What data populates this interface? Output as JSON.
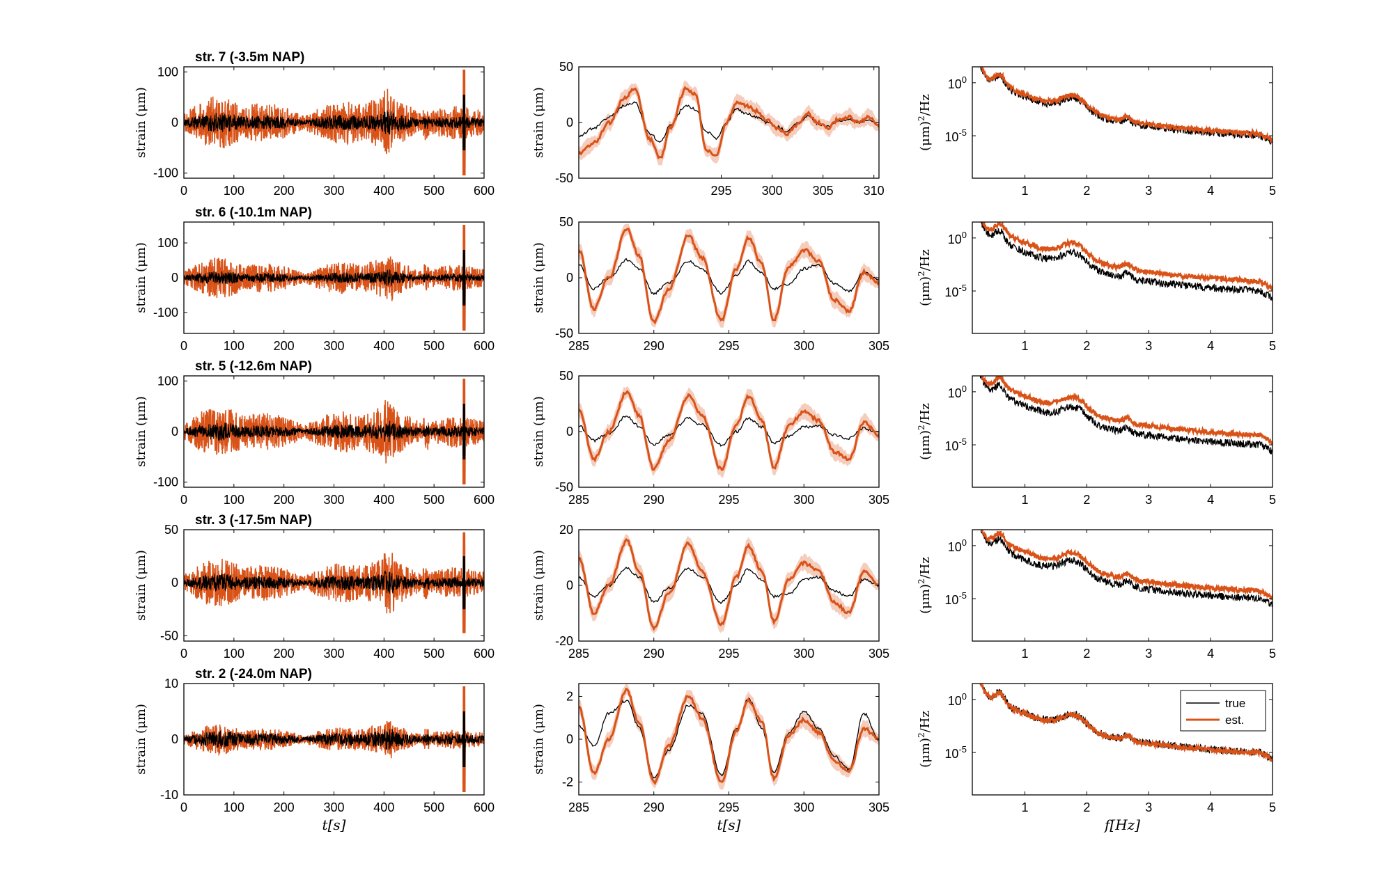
{
  "colors": {
    "true": "#000000",
    "est": "#d95319",
    "band": "#f4cdbd"
  },
  "legend": {
    "entries": [
      "true",
      "est."
    ],
    "placement": "top-right",
    "panel": "row-5-spectrum"
  },
  "chart_data": [
    {
      "row": 1,
      "title": "str. 7 (-3.5m NAP)",
      "type": "line",
      "ylabel": "strain (μm)",
      "left": {
        "xlim": [
          0,
          600
        ],
        "ylim": [
          -110,
          110
        ],
        "xticks": [
          "0",
          "100",
          "200",
          "300",
          "400",
          "500",
          "600"
        ],
        "yticks": [
          "100",
          "0",
          "-100"
        ],
        "est_amp": 50,
        "true_amp": 20
      },
      "mid": {
        "xlim": [
          281,
          310.5
        ],
        "ylim": [
          -50,
          50
        ],
        "xticks": [
          "295",
          "300",
          "305",
          "310"
        ],
        "yticks": [
          "50",
          "0",
          "-50"
        ],
        "est": {
          "x": [
            281,
            282.5,
            284,
            285.5,
            286.5,
            288,
            289,
            290,
            291.5,
            292.5,
            293.5,
            294.5,
            295.5,
            296.5,
            297.5,
            298.5,
            299.5,
            300.5,
            301.5,
            302.5,
            303.5,
            304.5,
            305.5,
            306.5,
            307.5,
            308.5,
            309.5,
            310.5
          ],
          "y": [
            -28,
            -18,
            0,
            22,
            30,
            -15,
            -32,
            -5,
            30,
            25,
            -25,
            -30,
            0,
            18,
            15,
            10,
            2,
            -5,
            -10,
            -2,
            8,
            0,
            -5,
            3,
            5,
            0,
            5,
            -3
          ]
        },
        "true": {
          "x": [
            281,
            282.5,
            284,
            285.5,
            286.5,
            288,
            289,
            290,
            291.5,
            292.5,
            293.5,
            294.5,
            295.5,
            296.5,
            297.5,
            298.5,
            299.5,
            300.5,
            301.5,
            302.5,
            303.5,
            304.5,
            305.5,
            306.5,
            307.5,
            308.5,
            309.5,
            310.5
          ],
          "y": [
            -12,
            -5,
            5,
            15,
            18,
            -10,
            -18,
            -2,
            15,
            12,
            -8,
            -14,
            0,
            12,
            8,
            5,
            0,
            -4,
            -8,
            -1,
            6,
            -1,
            -4,
            2,
            3,
            0,
            3,
            -2
          ]
        }
      },
      "right": {
        "xlim": [
          0.15,
          5
        ],
        "ylog": [
          -9,
          1.5
        ],
        "xticks": [
          "1",
          "2",
          "3",
          "4",
          "5"
        ],
        "yticks": [
          "10^0",
          "10^-5"
        ],
        "est_offset": 0.2
      }
    },
    {
      "row": 2,
      "title": "str. 6 (-10.1m NAP)",
      "type": "line",
      "ylabel": "strain (μm)",
      "left": {
        "xlim": [
          0,
          600
        ],
        "ylim": [
          -160,
          160
        ],
        "xticks": [
          "0",
          "100",
          "200",
          "300",
          "400",
          "500",
          "600"
        ],
        "yticks": [
          "100",
          "0",
          "-100"
        ],
        "est_amp": 55,
        "true_amp": 20
      },
      "mid": {
        "xlim": [
          285,
          305
        ],
        "ylim": [
          -50,
          50
        ],
        "xticks": [
          "285",
          "290",
          "295",
          "300",
          "305"
        ],
        "yticks": [
          "50",
          "0",
          "-50"
        ],
        "est": {
          "x": [
            285,
            286,
            287,
            288.2,
            289,
            290,
            291,
            292.3,
            293.2,
            294.5,
            295.5,
            296.3,
            297.2,
            298,
            299,
            300,
            301,
            302,
            303,
            304,
            305
          ],
          "y": [
            25,
            -28,
            0,
            44,
            20,
            -40,
            -10,
            38,
            18,
            -38,
            8,
            36,
            12,
            -38,
            10,
            25,
            15,
            -20,
            -30,
            5,
            -5
          ]
        },
        "true": {
          "x": [
            285,
            286,
            287,
            288.2,
            289,
            290,
            291,
            292.3,
            293.2,
            294.5,
            295.5,
            296.3,
            297.2,
            298,
            299,
            300,
            301,
            302,
            303,
            304,
            305
          ],
          "y": [
            12,
            -10,
            0,
            16,
            8,
            -14,
            -5,
            15,
            8,
            -14,
            2,
            15,
            4,
            -10,
            -6,
            8,
            12,
            -5,
            -12,
            5,
            -2
          ]
        }
      },
      "right": {
        "xlim": [
          0.15,
          5
        ],
        "ylog": [
          -9,
          1.5
        ],
        "xticks": [
          "1",
          "2",
          "3",
          "4",
          "5"
        ],
        "yticks": [
          "10^0",
          "10^-5"
        ],
        "est_offset": 0.9
      }
    },
    {
      "row": 3,
      "title": "str. 5 (-12.6m NAP)",
      "type": "line",
      "ylabel": "strain (μm)",
      "left": {
        "xlim": [
          0,
          600
        ],
        "ylim": [
          -110,
          110
        ],
        "xticks": [
          "0",
          "100",
          "200",
          "300",
          "400",
          "500",
          "600"
        ],
        "yticks": [
          "100",
          "0",
          "-100"
        ],
        "est_amp": 48,
        "true_amp": 18
      },
      "mid": {
        "xlim": [
          285,
          305
        ],
        "ylim": [
          -50,
          50
        ],
        "xticks": [
          "285",
          "290",
          "295",
          "300",
          "305"
        ],
        "yticks": [
          "50",
          "0",
          "-50"
        ],
        "est": {
          "x": [
            285,
            286,
            287,
            288.2,
            289,
            290,
            291,
            292.3,
            293.2,
            294.5,
            295.5,
            296.3,
            297.2,
            298,
            299,
            300,
            301,
            302,
            303,
            304,
            305
          ],
          "y": [
            20,
            -25,
            0,
            36,
            15,
            -34,
            -8,
            32,
            15,
            -34,
            6,
            32,
            10,
            -32,
            5,
            18,
            10,
            -18,
            -25,
            8,
            -3
          ]
        },
        "true": {
          "x": [
            285,
            286,
            287,
            288.2,
            289,
            290,
            291,
            292.3,
            293.2,
            294.5,
            295.5,
            296.3,
            297.2,
            298,
            299,
            300,
            301,
            302,
            303,
            304,
            305
          ],
          "y": [
            5,
            -8,
            -2,
            14,
            5,
            -12,
            -3,
            12,
            6,
            -12,
            0,
            12,
            4,
            -10,
            -4,
            4,
            5,
            -3,
            -6,
            3,
            -1
          ]
        }
      },
      "right": {
        "xlim": [
          0.15,
          5
        ],
        "ylog": [
          -9,
          1.5
        ],
        "xticks": [
          "1",
          "2",
          "3",
          "4",
          "5"
        ],
        "yticks": [
          "10^0",
          "10^-5"
        ],
        "est_offset": 0.9
      }
    },
    {
      "row": 4,
      "title": "str. 3 (-17.5m NAP)",
      "type": "line",
      "ylabel": "strain (μm)",
      "left": {
        "xlim": [
          0,
          600
        ],
        "ylim": [
          -55,
          50
        ],
        "xticks": [
          "0",
          "100",
          "200",
          "300",
          "400",
          "500",
          "600"
        ],
        "yticks": [
          "50",
          "0",
          "-50"
        ],
        "est_amp": 22,
        "true_amp": 9
      },
      "mid": {
        "xlim": [
          285,
          305
        ],
        "ylim": [
          -20,
          20
        ],
        "xticks": [
          "285",
          "290",
          "295",
          "300",
          "305"
        ],
        "yticks": [
          "20",
          "0",
          "-20"
        ],
        "est": {
          "x": [
            285,
            286,
            287,
            288.2,
            289,
            290,
            291,
            292.3,
            293.2,
            294.5,
            295.5,
            296.3,
            297.2,
            298,
            299,
            300,
            301,
            302,
            303,
            304,
            305
          ],
          "y": [
            10,
            -10,
            0,
            16,
            5,
            -15,
            -3,
            15,
            5,
            -14,
            3,
            14,
            5,
            -13,
            2,
            8,
            5,
            -6,
            -10,
            5,
            0
          ]
        },
        "true": {
          "x": [
            285,
            286,
            287,
            288.2,
            289,
            290,
            291,
            292.3,
            293.2,
            294.5,
            295.5,
            296.3,
            297.2,
            298,
            299,
            300,
            301,
            302,
            303,
            304,
            305
          ],
          "y": [
            3,
            -4,
            0,
            6,
            3,
            -6,
            -1,
            6,
            3,
            -6,
            0,
            6,
            2,
            -4,
            -3,
            2,
            3,
            -2,
            -4,
            2,
            0
          ]
        }
      },
      "right": {
        "xlim": [
          0.15,
          5
        ],
        "ylog": [
          -9,
          1.5
        ],
        "xticks": [
          "1",
          "2",
          "3",
          "4",
          "5"
        ],
        "yticks": [
          "10^0",
          "10^-5"
        ],
        "est_offset": 0.7
      }
    },
    {
      "row": 5,
      "title": "str. 2 (-24.0m NAP)",
      "type": "line",
      "ylabel": "strain (μm)",
      "xlabel": "t[s]",
      "spec_xlabel": "f[Hz]",
      "left": {
        "xlim": [
          0,
          600
        ],
        "ylim": [
          -10,
          10
        ],
        "xticks": [
          "0",
          "100",
          "200",
          "300",
          "400",
          "500",
          "600"
        ],
        "yticks": [
          "10",
          "0",
          "-10"
        ],
        "est_amp": 2.6,
        "true_amp": 1.6
      },
      "mid": {
        "xlim": [
          285,
          305
        ],
        "ylim": [
          -2.6,
          2.6
        ],
        "xticks": [
          "285",
          "290",
          "295",
          "300",
          "305"
        ],
        "yticks": [
          "2",
          "0",
          "-2"
        ],
        "est": {
          "x": [
            285,
            286,
            287,
            288.2,
            289,
            290,
            291,
            292.3,
            293.2,
            294.5,
            295.5,
            296.3,
            297.2,
            298,
            299,
            300,
            301,
            302,
            303,
            304,
            305
          ],
          "y": [
            1.5,
            -1.6,
            0,
            2.3,
            0.8,
            -2.0,
            -0.3,
            2.0,
            1.0,
            -2.0,
            0.4,
            1.8,
            0.8,
            -1.8,
            0.2,
            0.9,
            0.3,
            -1.0,
            -1.5,
            0.5,
            0
          ]
        },
        "true": {
          "x": [
            285,
            286,
            287,
            288.2,
            289,
            290,
            291,
            292.3,
            293.2,
            294.5,
            295.5,
            296.3,
            297.2,
            298,
            299,
            300,
            301,
            302,
            303,
            304,
            305
          ],
          "y": [
            0.6,
            -0.3,
            1.2,
            1.8,
            0.6,
            -1.8,
            -0.5,
            1.6,
            1.2,
            -1.7,
            0.5,
            1.9,
            0.5,
            -1.6,
            0.3,
            1.3,
            0.5,
            -0.8,
            -1.4,
            1.2,
            0
          ]
        }
      },
      "right": {
        "xlim": [
          0.15,
          5
        ],
        "ylog": [
          -9,
          1.5
        ],
        "xticks": [
          "1",
          "2",
          "3",
          "4",
          "5"
        ],
        "yticks": [
          "10^0",
          "10^-5"
        ],
        "est_offset": -0.05
      }
    }
  ]
}
